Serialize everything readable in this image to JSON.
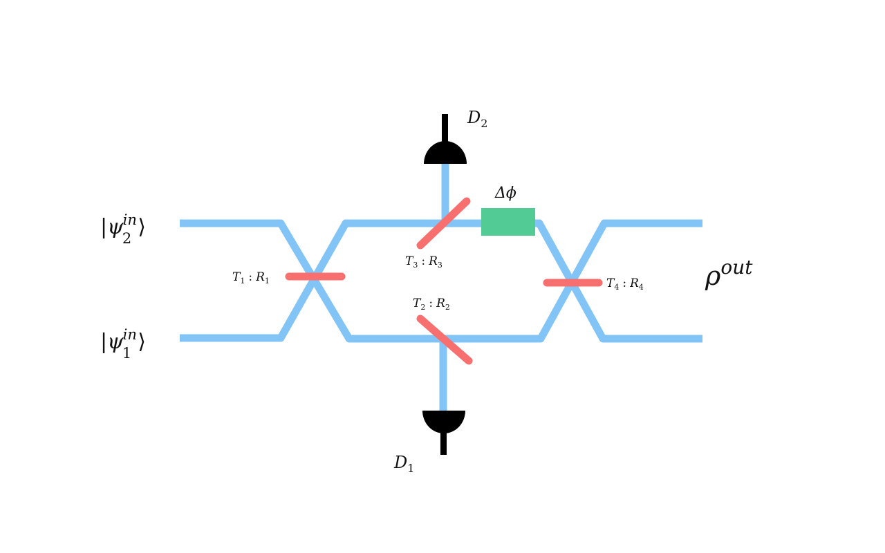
{
  "inputs": {
    "psi2": {
      "symbol": "ψ",
      "sup": "in",
      "sub": "2"
    },
    "psi1": {
      "symbol": "ψ",
      "sup": "in",
      "sub": "1"
    }
  },
  "output": {
    "symbol": "ρ",
    "sup": "out"
  },
  "detectors": {
    "d2": {
      "symbol": "D",
      "sub": "2"
    },
    "d1": {
      "symbol": "D",
      "sub": "1"
    }
  },
  "phase_shifter": {
    "label": "Δϕ"
  },
  "beam_splitters": {
    "bs1": {
      "t": "T",
      "r": "R",
      "index": "1",
      "sep": ":"
    },
    "bs2": {
      "t": "T",
      "r": "R",
      "index": "2",
      "sep": ":"
    },
    "bs3": {
      "t": "T",
      "r": "R",
      "index": "3",
      "sep": ":"
    },
    "bs4": {
      "t": "T",
      "r": "R",
      "index": "4",
      "sep": ":"
    }
  },
  "colors": {
    "waveguide": "#82c4f5",
    "beam_splitter": "#f76f6f",
    "phase_shifter": "#52cc94",
    "detector": "#000000"
  }
}
